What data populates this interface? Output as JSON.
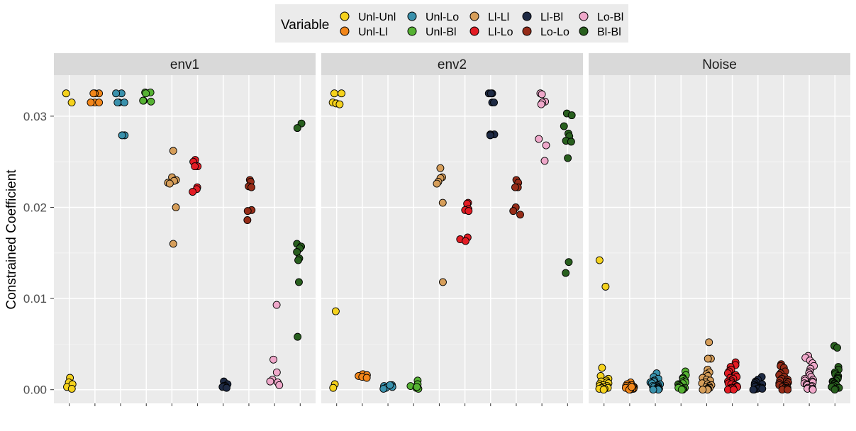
{
  "chart_data": {
    "type": "scatter",
    "ylabel": "Constrained Coefficient",
    "xlabel": "",
    "yticks": [
      "0.00",
      "0.01",
      "0.02",
      "0.03"
    ],
    "ylim": [
      -0.0015,
      0.0345
    ],
    "grid": true,
    "legend_position": "top",
    "legend": {
      "title": "Variable",
      "entries": [
        {
          "label": "Unl-Unl",
          "color": "#F5D21D"
        },
        {
          "label": "Unl-Ll",
          "color": "#F2861A"
        },
        {
          "label": "Unl-Lo",
          "color": "#3A91AC"
        },
        {
          "label": "Unl-Bl",
          "color": "#56B233"
        },
        {
          "label": "Ll-Ll",
          "color": "#D69E5A"
        },
        {
          "label": "Ll-Lo",
          "color": "#E31C24"
        },
        {
          "label": "Ll-Bl",
          "color": "#1E2A44"
        },
        {
          "label": "Lo-Lo",
          "color": "#962C18"
        },
        {
          "label": "Lo-Bl",
          "color": "#EFA8CA"
        },
        {
          "label": "Bl-Bl",
          "color": "#285F1E"
        }
      ]
    },
    "panels": [
      {
        "title": "env1",
        "series": [
          {
            "name": "Unl-Unl",
            "values": [
              0.0325,
              0.0315,
              0.0013,
              0.0008,
              0.0003,
              0.0006,
              0.0001
            ]
          },
          {
            "name": "Unl-Ll",
            "values": [
              0.0325,
              0.0325,
              0.0325,
              0.0315,
              0.0315,
              0.0315
            ]
          },
          {
            "name": "Unl-Lo",
            "values": [
              0.0325,
              0.0325,
              0.0315,
              0.0315,
              0.0315,
              0.0279,
              0.0279
            ]
          },
          {
            "name": "Unl-Bl",
            "values": [
              0.0326,
              0.0326,
              0.0325,
              0.0317,
              0.0317,
              0.0316
            ]
          },
          {
            "name": "Ll-Ll",
            "values": [
              0.0262,
              0.0233,
              0.023,
              0.0229,
              0.0227,
              0.0226,
              0.02,
              0.016
            ]
          },
          {
            "name": "Ll-Lo",
            "values": [
              0.0252,
              0.025,
              0.0245,
              0.0245,
              0.0222,
              0.022,
              0.0217
            ]
          },
          {
            "name": "Ll-Bl",
            "values": [
              0.0009,
              0.0006,
              0.0004,
              0.0004,
              0.0003,
              0.0002
            ]
          },
          {
            "name": "Lo-Lo",
            "values": [
              0.023,
              0.0228,
              0.0223,
              0.0222,
              0.0197,
              0.0196,
              0.0186
            ]
          },
          {
            "name": "Lo-Bl",
            "values": [
              0.0093,
              0.0033,
              0.0019,
              0.0011,
              0.0009,
              0.0008,
              0.0005
            ]
          },
          {
            "name": "Bl-Bl",
            "values": [
              0.0292,
              0.0287,
              0.016,
              0.0157,
              0.0155,
              0.0151,
              0.0144,
              0.0142,
              0.0118,
              0.0058
            ]
          }
        ]
      },
      {
        "title": "env2",
        "series": [
          {
            "name": "Unl-Unl",
            "values": [
              0.0325,
              0.0325,
              0.0315,
              0.0314,
              0.0313,
              0.0086,
              0.0006,
              0.0002
            ]
          },
          {
            "name": "Unl-Ll",
            "values": [
              0.0017,
              0.0016,
              0.0015,
              0.0014,
              0.0013
            ]
          },
          {
            "name": "Unl-Lo",
            "values": [
              0.0005,
              0.0004,
              0.0003,
              0.0002,
              0.0001,
              0.0005
            ]
          },
          {
            "name": "Unl-Bl",
            "values": [
              0.001,
              0.0006,
              0.0004,
              0.0002,
              0.0001,
              0.0003
            ]
          },
          {
            "name": "Ll-Ll",
            "values": [
              0.0243,
              0.0233,
              0.0232,
              0.0228,
              0.0226,
              0.0205,
              0.0118
            ]
          },
          {
            "name": "Ll-Lo",
            "values": [
              0.0205,
              0.0204,
              0.0198,
              0.0197,
              0.0196,
              0.0167,
              0.0165,
              0.0163
            ]
          },
          {
            "name": "Ll-Bl",
            "values": [
              0.0325,
              0.0325,
              0.0325,
              0.0315,
              0.0315,
              0.028,
              0.028,
              0.0279
            ]
          },
          {
            "name": "Lo-Lo",
            "values": [
              0.023,
              0.0227,
              0.0222,
              0.0222,
              0.02,
              0.0196,
              0.0192
            ]
          },
          {
            "name": "Lo-Bl",
            "values": [
              0.0325,
              0.0324,
              0.0316,
              0.0315,
              0.0313,
              0.0275,
              0.0268,
              0.0251
            ]
          },
          {
            "name": "Bl-Bl",
            "values": [
              0.0303,
              0.0301,
              0.0289,
              0.0281,
              0.0278,
              0.0273,
              0.0272,
              0.0254,
              0.014,
              0.0128
            ]
          }
        ]
      },
      {
        "title": "Noise",
        "series": [
          {
            "name": "Unl-Unl",
            "values": [
              0.0142,
              0.0113,
              0.0024,
              0.0015,
              0.0012,
              0.001,
              0.0009,
              0.0008,
              0.0007,
              0.0006,
              0.0005,
              0.0004,
              0.0004,
              0.0003,
              0.0003,
              0.0002,
              0.0002,
              0.0001,
              0.0001,
              0.0
            ]
          },
          {
            "name": "Unl-Ll",
            "values": [
              0.0008,
              0.0006,
              0.0005,
              0.0004,
              0.0004,
              0.0003,
              0.0003,
              0.0002,
              0.0002,
              0.0001,
              0.0001,
              0.0,
              0.0,
              0.0003
            ]
          },
          {
            "name": "Unl-Lo",
            "values": [
              0.0018,
              0.0014,
              0.0012,
              0.001,
              0.0009,
              0.0008,
              0.0007,
              0.0006,
              0.0005,
              0.0004,
              0.0004,
              0.0003,
              0.0003,
              0.0002,
              0.0002,
              0.0001,
              0.0001,
              0.0,
              0.0
            ]
          },
          {
            "name": "Unl-Bl",
            "values": [
              0.002,
              0.0016,
              0.0013,
              0.0012,
              0.001,
              0.0009,
              0.0008,
              0.0007,
              0.0006,
              0.0005,
              0.0004,
              0.0003,
              0.0002,
              0.0002,
              0.0001,
              0.0,
              0.0
            ]
          },
          {
            "name": "Ll-Ll",
            "values": [
              0.0052,
              0.0034,
              0.0034,
              0.0022,
              0.0019,
              0.0017,
              0.0015,
              0.0013,
              0.0011,
              0.001,
              0.0008,
              0.0007,
              0.0006,
              0.0005,
              0.0004,
              0.0003,
              0.0002,
              0.0002,
              0.0001,
              0.0001,
              0.0,
              0.0
            ]
          },
          {
            "name": "Ll-Lo",
            "values": [
              0.003,
              0.0027,
              0.0025,
              0.0022,
              0.002,
              0.0018,
              0.0016,
              0.0014,
              0.0013,
              0.0012,
              0.001,
              0.0009,
              0.0008,
              0.0007,
              0.0006,
              0.0005,
              0.0004,
              0.0003,
              0.0002,
              0.0002,
              0.0001,
              0.0,
              0.0
            ]
          },
          {
            "name": "Ll-Bl",
            "values": [
              0.0014,
              0.0011,
              0.0009,
              0.0008,
              0.0007,
              0.0006,
              0.0005,
              0.0004,
              0.0003,
              0.0003,
              0.0002,
              0.0002,
              0.0001,
              0.0001,
              0.0,
              0.0
            ]
          },
          {
            "name": "Lo-Lo",
            "values": [
              0.0028,
              0.0026,
              0.0024,
              0.002,
              0.0018,
              0.0016,
              0.0014,
              0.0012,
              0.0011,
              0.001,
              0.0009,
              0.0008,
              0.0007,
              0.0006,
              0.0005,
              0.0004,
              0.0003,
              0.0002,
              0.0002,
              0.0001,
              0.0,
              0.0
            ]
          },
          {
            "name": "Lo-Bl",
            "values": [
              0.0037,
              0.0035,
              0.0032,
              0.0029,
              0.0026,
              0.0023,
              0.002,
              0.0018,
              0.0016,
              0.0014,
              0.0012,
              0.0011,
              0.001,
              0.0009,
              0.0008,
              0.0007,
              0.0006,
              0.0005,
              0.0004,
              0.0003,
              0.0002,
              0.0001,
              0.0001,
              0.0
            ]
          },
          {
            "name": "Bl-Bl",
            "values": [
              0.0048,
              0.0046,
              0.0025,
              0.0022,
              0.0019,
              0.0017,
              0.0015,
              0.0013,
              0.0012,
              0.001,
              0.0009,
              0.0008,
              0.0007,
              0.0006,
              0.0005,
              0.0004,
              0.0003,
              0.0002,
              0.0001,
              0.0
            ]
          }
        ]
      }
    ]
  }
}
